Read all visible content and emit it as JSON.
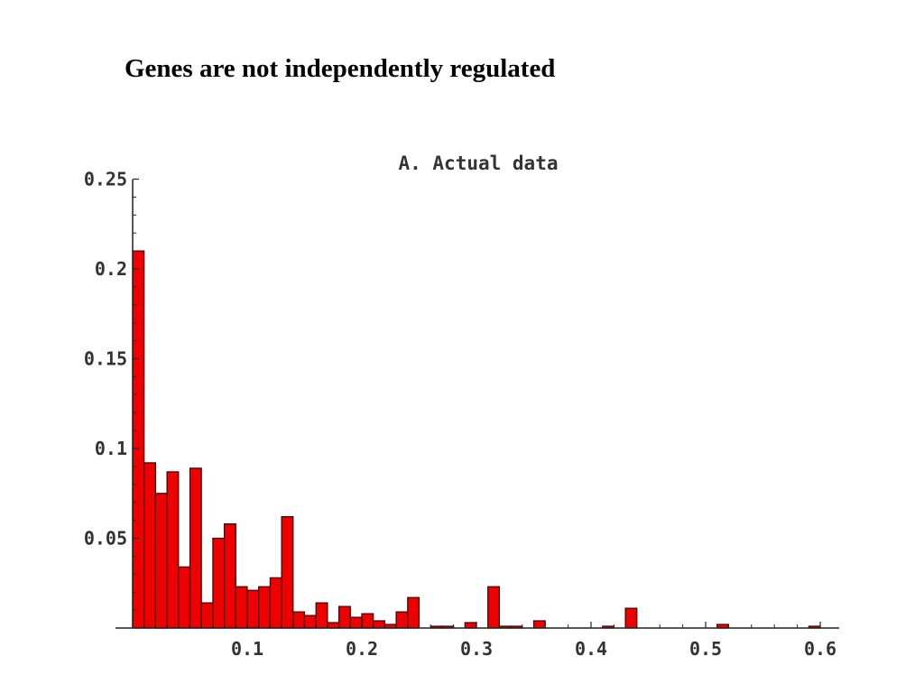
{
  "slide": {
    "title": "Genes are not independently regulated"
  },
  "chart_data": {
    "type": "bar",
    "title": "A. Actual data",
    "xlabel": "",
    "ylabel": "",
    "xlim": [
      0,
      0.61
    ],
    "ylim": [
      0,
      0.25
    ],
    "x_ticks": [
      {
        "value": 0.1,
        "label": "0.1"
      },
      {
        "value": 0.2,
        "label": "0.2"
      },
      {
        "value": 0.3,
        "label": "0.3"
      },
      {
        "value": 0.4,
        "label": "0.4"
      },
      {
        "value": 0.5,
        "label": "0.5"
      },
      {
        "value": 0.6,
        "label": "0.6"
      }
    ],
    "y_ticks": [
      {
        "value": 0.05,
        "label": "0.05"
      },
      {
        "value": 0.1,
        "label": "0.1"
      },
      {
        "value": 0.15,
        "label": "0.15"
      },
      {
        "value": 0.2,
        "label": "0.2"
      },
      {
        "value": 0.25,
        "label": "0.25"
      }
    ],
    "bin_width": 0.01,
    "bin_start": 0,
    "values": [
      0.21,
      0.092,
      0.075,
      0.087,
      0.034,
      0.089,
      0.014,
      0.05,
      0.058,
      0.023,
      0.021,
      0.023,
      0.028,
      0.062,
      0.009,
      0.007,
      0.014,
      0.003,
      0.012,
      0.006,
      0.008,
      0.004,
      0.002,
      0.009,
      0.017,
      0,
      0.001,
      0.001,
      0,
      0.003,
      0,
      0.023,
      0.001,
      0.001,
      0,
      0.004,
      0,
      0,
      0,
      0,
      0,
      0.001,
      0,
      0.011,
      0,
      0,
      0,
      0,
      0,
      0,
      0,
      0.002,
      0,
      0,
      0,
      0,
      0,
      0,
      0,
      0.001
    ],
    "colors": {
      "bar_fill": "#ee0000",
      "bar_stroke": "#3a0000",
      "axis": "#222222"
    }
  }
}
